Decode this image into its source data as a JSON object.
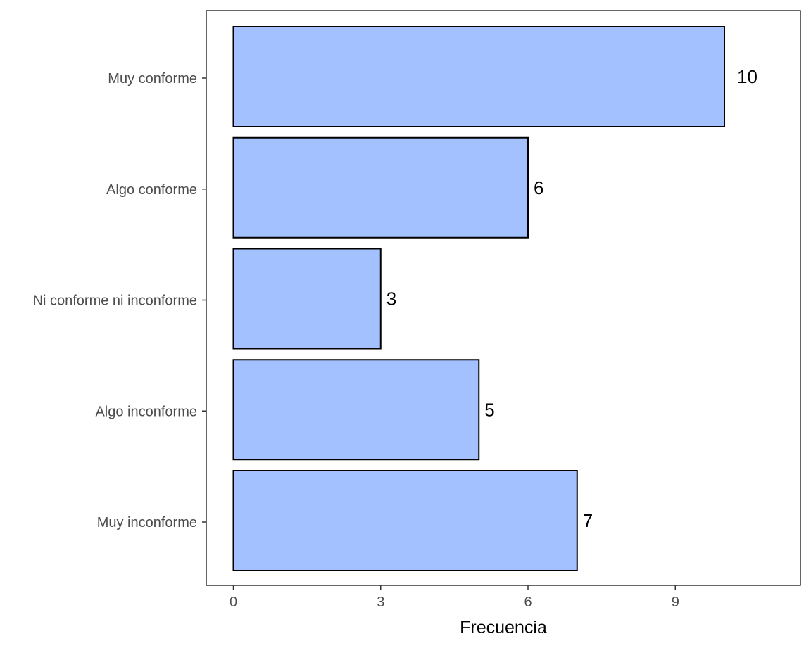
{
  "chart_data": {
    "type": "bar",
    "orientation": "horizontal",
    "categories": [
      "Muy conforme",
      "Algo conforme",
      "Ni conforme ni inconforme",
      "Algo inconforme",
      "Muy inconforme"
    ],
    "values": [
      10,
      6,
      3,
      5,
      7
    ],
    "data_labels": [
      "10",
      "6",
      "3",
      "5",
      "7"
    ],
    "title": "",
    "xlabel": "Frecuencia",
    "ylabel": "",
    "xlim": [
      0,
      11.4
    ],
    "x_ticks": [
      0,
      3,
      6,
      9
    ],
    "x_tick_labels": [
      "0",
      "3",
      "6",
      "9"
    ],
    "grid": false,
    "legend": "none",
    "colors": {
      "bar_fill": "#a4c1ff",
      "bar_stroke": "#000000",
      "panel_border": "#333333",
      "tick_text": "#4d4d4d",
      "axis_title": "#000000",
      "data_label": "#000000"
    }
  }
}
